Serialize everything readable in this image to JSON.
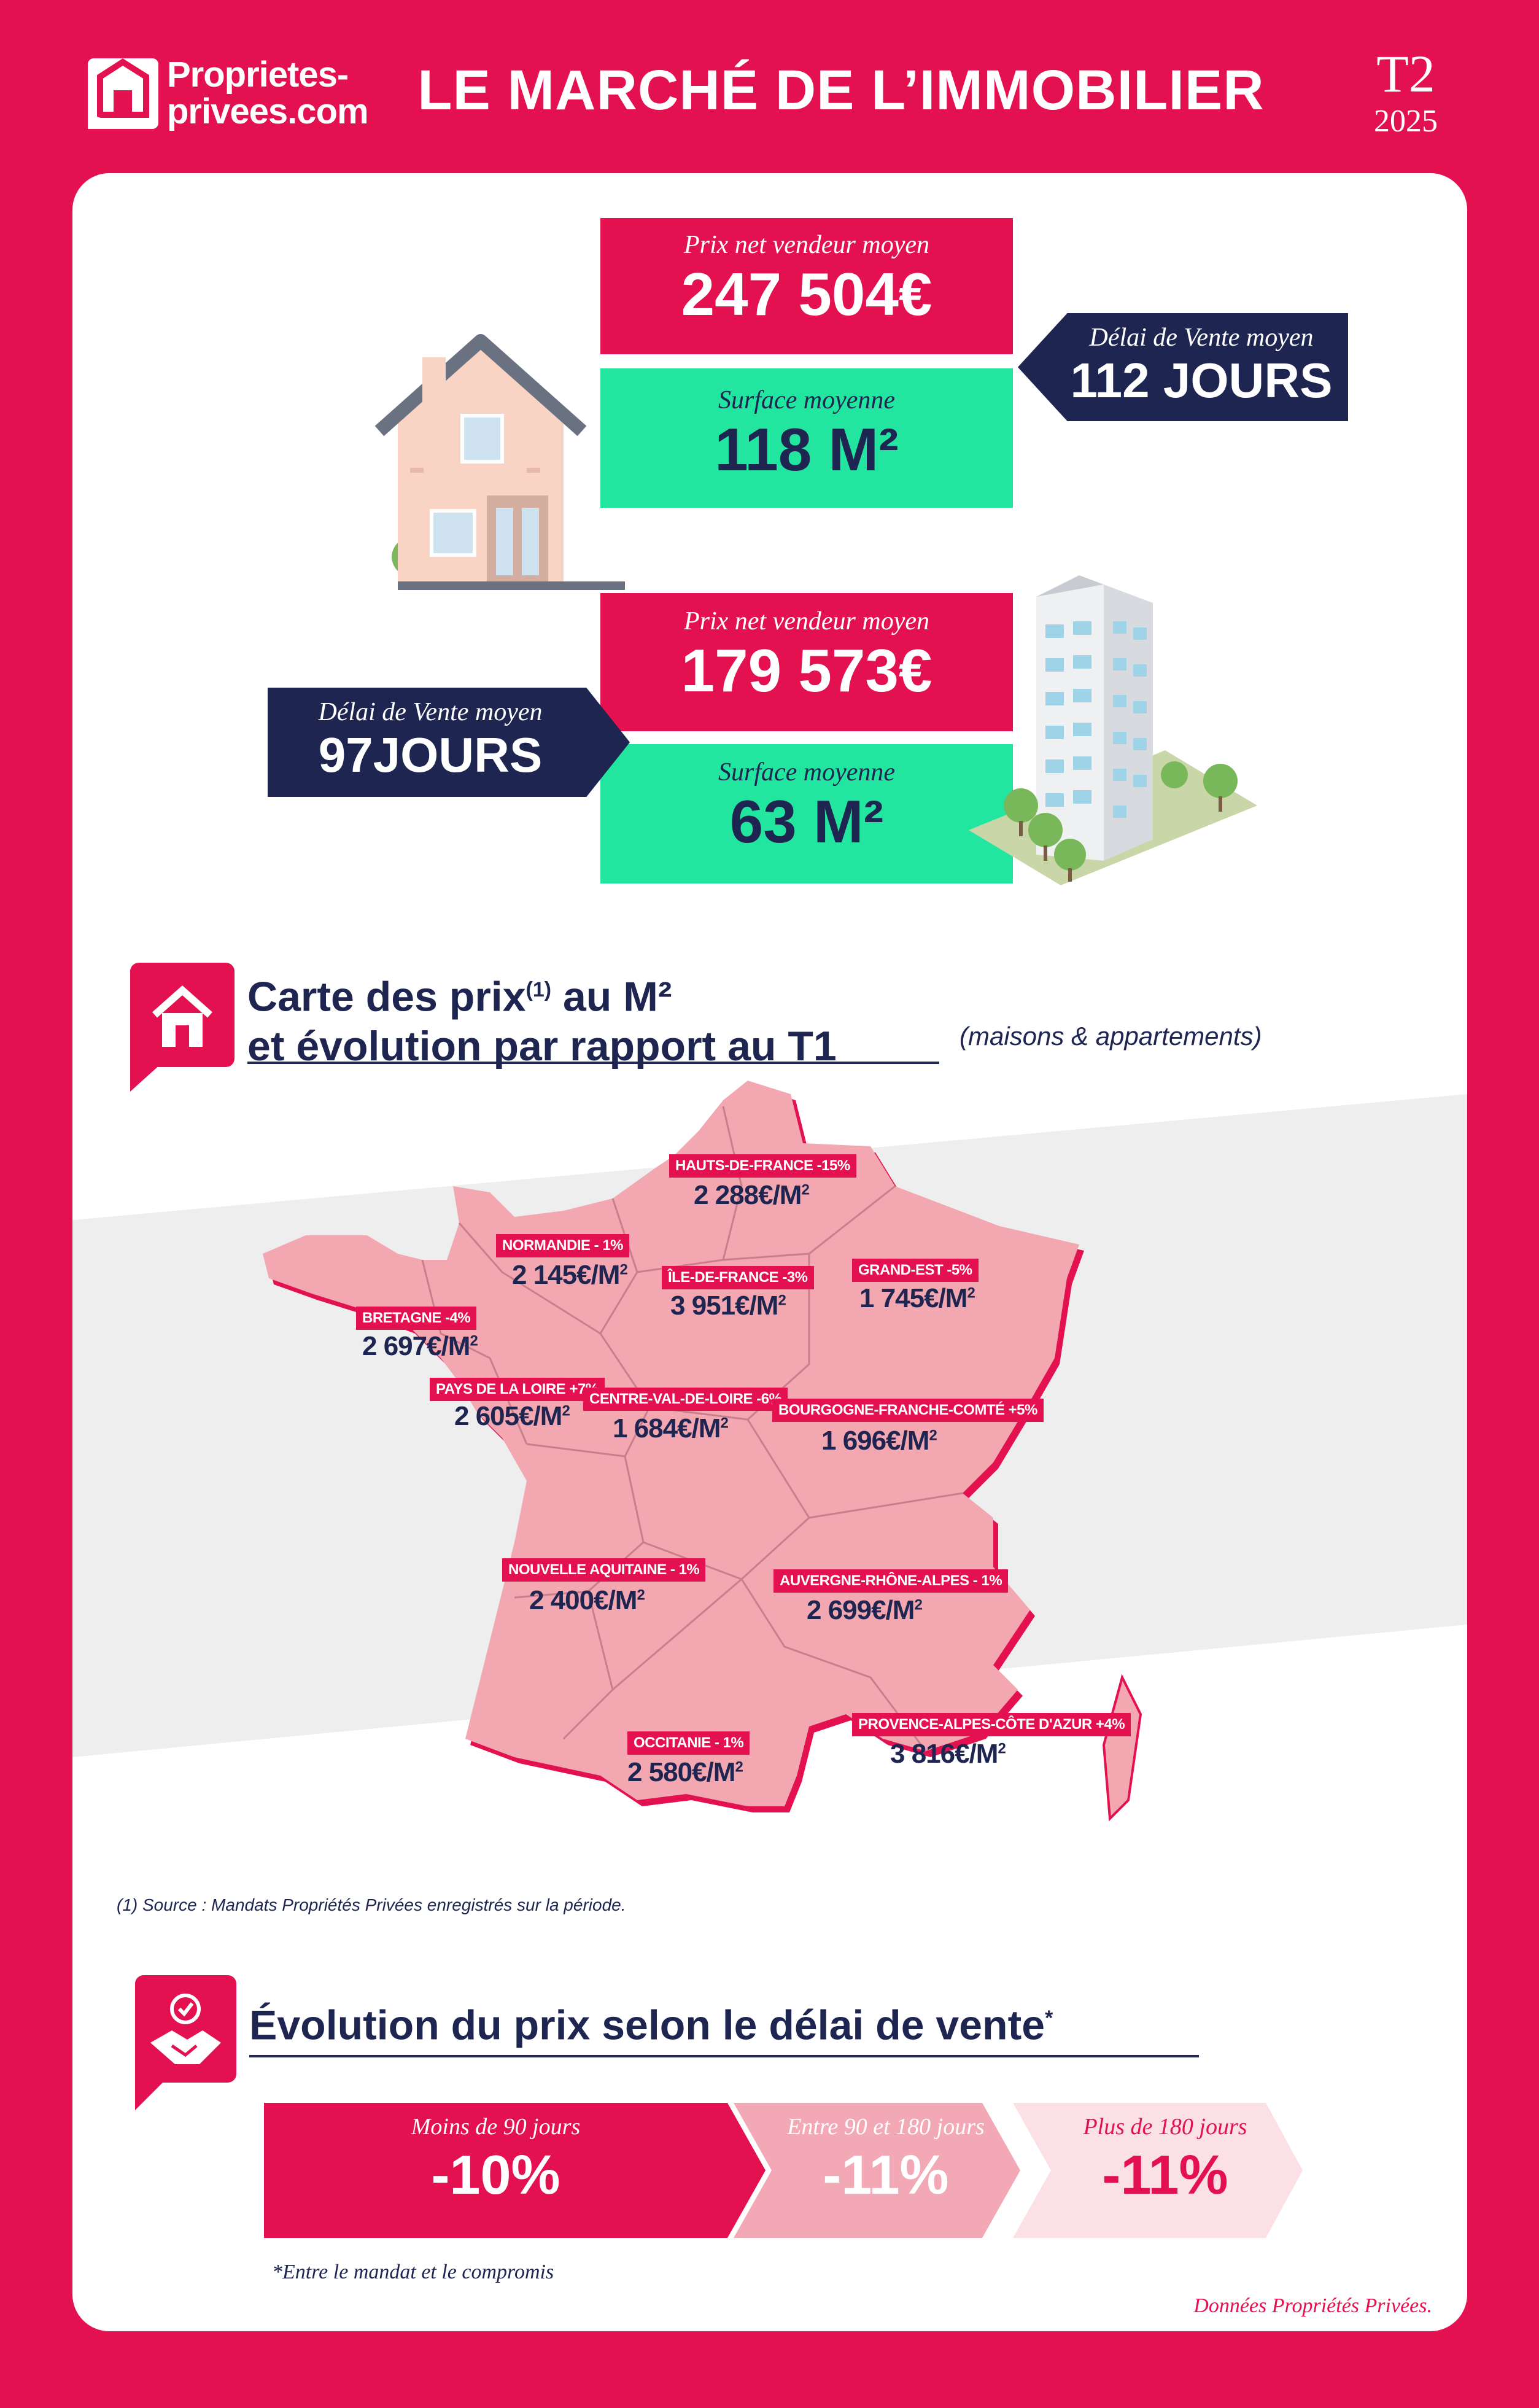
{
  "header": {
    "logo_line1": "Proprietes-",
    "logo_line2": "privees.com",
    "title": "LE MARCHÉ DE L’IMMOBILIER",
    "quarter": "T2",
    "year": "2025"
  },
  "house": {
    "price_label": "Prix net vendeur moyen",
    "price_value": "247 504€",
    "surface_label": "Surface moyenne",
    "surface_value": "118 M²",
    "delay_label": "Délai de Vente moyen",
    "delay_value": "112 JOURS"
  },
  "apartment": {
    "price_label": "Prix net vendeur moyen",
    "price_value": "179 573€",
    "surface_label": "Surface moyenne",
    "surface_value": "63 M²",
    "delay_label": "Délai de Vente moyen",
    "delay_value": "97JOURS"
  },
  "map_section": {
    "title_line1_a": "Carte des prix",
    "title_sup": "(1)",
    "title_line1_b": " au M²",
    "title_line2": "et évolution par rapport au T1",
    "subtitle": "(maisons & appartements)",
    "source_note": "(1) Source : Mandats Propriétés Privées enregistrés sur la période."
  },
  "regions": [
    {
      "label": "HAUTS-DE-FRANCE -15%",
      "price": "2 288€/M",
      "exp": "2"
    },
    {
      "label": "NORMANDIE - 1%",
      "price": "2 145€/M",
      "exp": "2"
    },
    {
      "label": "ÎLE-DE-FRANCE -3%",
      "price": "3 951€/M",
      "exp": "2"
    },
    {
      "label": "GRAND-EST -5%",
      "price": "1 745€/M",
      "exp": "2"
    },
    {
      "label": "BRETAGNE -4%",
      "price": "2 697€/M",
      "exp": "2"
    },
    {
      "label": "PAYS DE LA LOIRE +7%",
      "price": "2 605€/M",
      "exp": "2"
    },
    {
      "label": "CENTRE-VAL-DE-LOIRE -6%",
      "price": "1 684€/M",
      "exp": "2"
    },
    {
      "label": "BOURGOGNE-FRANCHE-COMTÉ +5%",
      "price": "1 696€/M",
      "exp": "2"
    },
    {
      "label": "NOUVELLE AQUITAINE - 1%",
      "price": "2 400€/M",
      "exp": "2"
    },
    {
      "label": "AUVERGNE-RHÔNE-ALPES - 1%",
      "price": "2 699€/M",
      "exp": "2"
    },
    {
      "label": "OCCITANIE - 1%",
      "price": "2 580€/M",
      "exp": "2"
    },
    {
      "label": "PROVENCE-ALPES-CÔTE D'AZUR +4%",
      "price": "3 816€/M",
      "exp": "2"
    }
  ],
  "evolution_section": {
    "title": "Évolution du prix selon le délai de vente",
    "title_sup": "*",
    "items": [
      {
        "label": "Moins de 90 jours",
        "value": "-10%",
        "color": "#e3114f"
      },
      {
        "label": "Entre 90 et 180 jours",
        "value": "-11%",
        "color": "#f3a9b5"
      },
      {
        "label": "Plus de 180 jours",
        "value": "-11%",
        "color": "#fbe1e5"
      }
    ],
    "footnote": "*Entre le mandat et le compromis"
  },
  "credit": "Données Propriétés Privées.",
  "colors": {
    "brand": "#e3114f",
    "navy": "#1d2550",
    "green": "#22e6a0",
    "map_fill": "#f2a7b1"
  }
}
